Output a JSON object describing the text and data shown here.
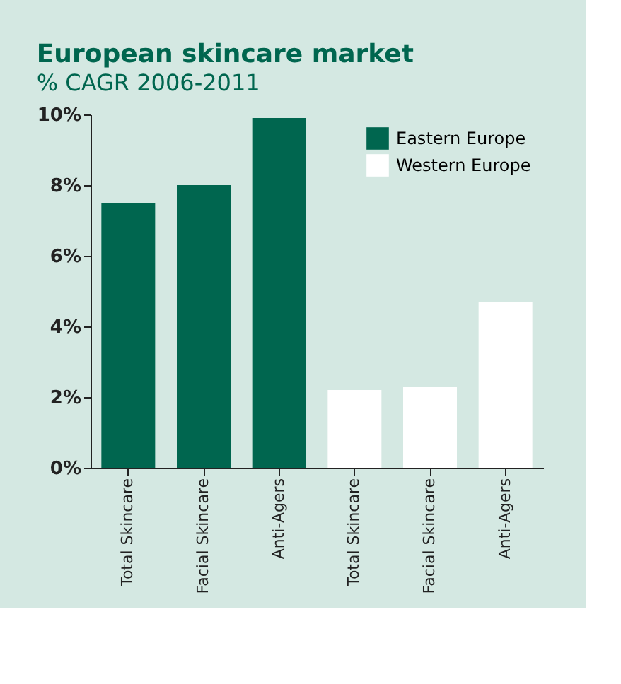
{
  "chart_data": {
    "type": "bar",
    "title": "European skincare market",
    "subtitle": "% CAGR 2006-2011",
    "categories": [
      "Total Skincare",
      "Facial Skincare",
      "Anti-Agers",
      "Total Skincare",
      "Facial Skincare",
      "Anti-Agers"
    ],
    "series": [
      {
        "name": "Eastern Europe",
        "color": "#00664f",
        "values": [
          7.5,
          8.0,
          9.9,
          null,
          null,
          null
        ]
      },
      {
        "name": "Western Europe",
        "color": "#ffffff",
        "values": [
          null,
          null,
          null,
          2.2,
          2.3,
          4.7
        ]
      }
    ],
    "ylim": [
      0,
      10
    ],
    "yticks": [
      {
        "value": 0,
        "label": "0%"
      },
      {
        "value": 2,
        "label": "2%"
      },
      {
        "value": 4,
        "label": "4%"
      },
      {
        "value": 6,
        "label": "6%"
      },
      {
        "value": 8,
        "label": "8%"
      },
      {
        "value": 10,
        "label": "10%"
      }
    ],
    "grid": false,
    "legend": "top right"
  }
}
